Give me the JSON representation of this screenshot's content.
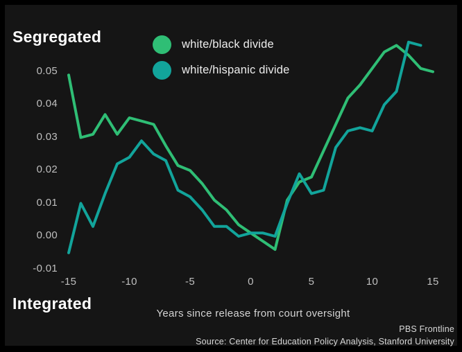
{
  "header": {
    "segregated_label": "Segregated",
    "integrated_label": "Integrated"
  },
  "legend": {
    "items": [
      {
        "id": "white-black",
        "label": "white/black divide",
        "color": "#2FBE75"
      },
      {
        "id": "white-hispanic",
        "label": "white/hispanic divide",
        "color": "#12A49B"
      }
    ]
  },
  "axis": {
    "x_title": "Years since release from court oversight"
  },
  "credits": {
    "attribution": "PBS Frontline",
    "source": "Source: Center for Education Policy Analysis, Stanford University"
  },
  "colors": {
    "background": "#151515",
    "frame": "#000000",
    "text_primary": "#ffffff",
    "text_secondary": "#bfbfbf",
    "green": "#2FBE75",
    "teal": "#12A49B"
  },
  "chart_data": {
    "type": "line",
    "title": "",
    "xlabel": "Years since release from court oversight",
    "ylabel_top_anchor": "Segregated",
    "ylabel_bottom_anchor": "Integrated",
    "xlim": [
      -15,
      15
    ],
    "ylim": [
      -0.01,
      0.06
    ],
    "grid": false,
    "legend_position": "top-center",
    "x_ticks": [
      {
        "value": -15,
        "label": "-15"
      },
      {
        "value": -10,
        "label": "-10"
      },
      {
        "value": -5,
        "label": "-5"
      },
      {
        "value": 0,
        "label": "0"
      },
      {
        "value": 5,
        "label": "5"
      },
      {
        "value": 10,
        "label": "10"
      },
      {
        "value": 15,
        "label": "15"
      }
    ],
    "y_ticks": [
      {
        "value": 0.05,
        "label": "0.05"
      },
      {
        "value": 0.04,
        "label": "0.04"
      },
      {
        "value": 0.03,
        "label": "0.03"
      },
      {
        "value": 0.02,
        "label": "0.02"
      },
      {
        "value": 0.01,
        "label": "0.01"
      },
      {
        "value": 0.0,
        "label": "0.00"
      },
      {
        "value": -0.01,
        "label": "-0.01"
      }
    ],
    "series": [
      {
        "id": "white-black",
        "name": "white/black divide",
        "color": "#2FBE75",
        "x": [
          -15,
          -14,
          -13,
          -12,
          -11,
          -10,
          -9,
          -8,
          -7,
          -6,
          -5,
          -4,
          -3,
          -2,
          -1,
          0,
          1,
          2,
          3,
          4,
          5,
          6,
          7,
          8,
          9,
          10,
          11,
          12,
          13,
          14,
          15
        ],
        "values": [
          0.049,
          0.03,
          0.031,
          0.037,
          0.031,
          0.036,
          0.035,
          0.034,
          0.0275,
          0.0215,
          0.02,
          0.016,
          0.011,
          0.008,
          0.0035,
          0.001,
          -0.0015,
          -0.004,
          0.011,
          0.0165,
          0.018,
          0.026,
          0.034,
          0.042,
          0.046,
          0.051,
          0.056,
          0.058,
          0.055,
          0.051,
          0.05
        ]
      },
      {
        "id": "white-hispanic",
        "name": "white/hispanic divide",
        "color": "#12A49B",
        "x": [
          -15,
          -14,
          -13,
          -12,
          -11,
          -10,
          -9,
          -8,
          -7,
          -6,
          -5,
          -4,
          -3,
          -2,
          -1,
          0,
          1,
          2,
          3,
          4,
          5,
          6,
          7,
          8,
          9,
          10,
          11,
          12,
          13,
          14
        ],
        "values": [
          -0.005,
          0.01,
          0.003,
          0.013,
          0.022,
          0.024,
          0.029,
          0.025,
          0.023,
          0.014,
          0.012,
          0.008,
          0.003,
          0.003,
          0.0,
          0.001,
          0.001,
          0.0,
          0.01,
          0.019,
          0.013,
          0.014,
          0.027,
          0.032,
          0.033,
          0.032,
          0.04,
          0.044,
          0.059,
          0.058
        ]
      }
    ]
  }
}
